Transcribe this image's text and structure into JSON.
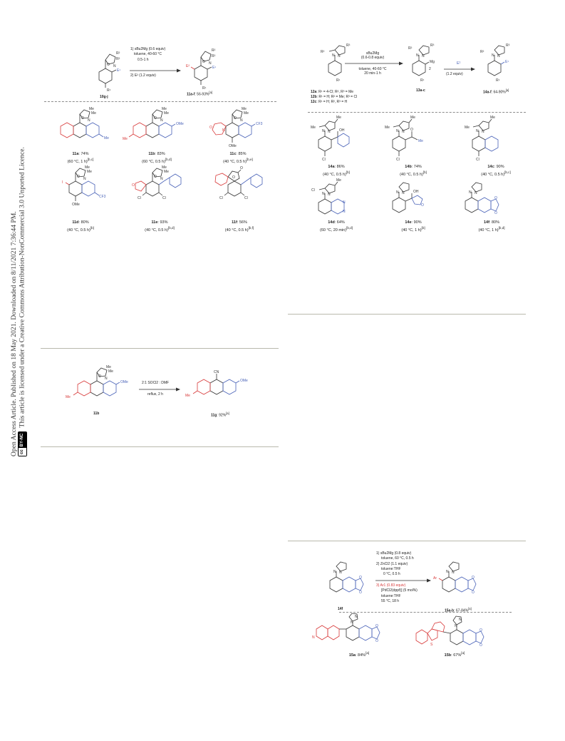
{
  "sidebar": {
    "line1": "Open Access Article. Published on 18 May 2021. Downloaded on 8/11/2021 7:36:44 PM.",
    "line2": "This article is licensed under a Creative Commons Attribution-NonCommercial 3.0 Unported Licence.",
    "badge_cc": "cc",
    "badge_terms": "BY-NC"
  },
  "scheme_a": {
    "substrate": "10g-j",
    "product": "11a-f",
    "yield": ": 56-93%",
    "yield_note": "[a]",
    "conditions": [
      "1) sBu2Mg (0.6 equiv)",
      "toluene, 40-60 °C",
      "0.5-1 h",
      "2) E² (1.2 equiv)"
    ],
    "labels": {
      "r2": "R²",
      "r2b": "R²",
      "e1": "E¹",
      "e2": "E²",
      "r1": "R¹"
    },
    "compounds": [
      {
        "id": "11a",
        "yield": ": 74%",
        "cond": "(60 °C, 1 h)",
        "note": "[b,c]"
      },
      {
        "id": "11b",
        "yield": ": 83%",
        "cond": "(60 °C, 0.5 h)",
        "note": "[b,d]"
      },
      {
        "id": "11c",
        "yield": ": 85%",
        "cond": "(40 °C, 0.5 h)",
        "note": "[b,e]"
      },
      {
        "id": "11d",
        "yield": ": 80%",
        "cond": "(40 °C, 0.5 h)",
        "note": "[b]"
      },
      {
        "id": "11e",
        "yield": ": 93%",
        "cond": "(40 °C, 0.5 h)",
        "note": "[b,d]"
      },
      {
        "id": "11f",
        "yield": ": 56%",
        "cond": "(40 °C, 0.5 h)",
        "note": "[b,f]"
      }
    ]
  },
  "scheme_b": {
    "reagent_line1": "sBu2Mg",
    "reagent_line2": "(0.6-0.8 equiv)",
    "cond_line1": "toluene, 40-60 °C",
    "cond_line2": "20 min-1 h",
    "electrophile": "E¹",
    "electrophile_equiv": "(1.2 equiv)",
    "intermediate": "13a-c",
    "product": "14a-f",
    "yield": ": 64-90%",
    "yield_note": "[a]",
    "mg_label": "Mg",
    "mg_sub": "2",
    "substrates": [
      {
        "id": "12a",
        "desc": ": R¹ = 4-Cl; R², R³ = Me"
      },
      {
        "id": "12b",
        "desc": ": R¹ = H; R² = Me; R³ = Cl"
      },
      {
        "id": "12c",
        "desc": ": R¹ = H; R², R³ = H"
      }
    ],
    "compounds": [
      {
        "id": "14a",
        "yield": ": 86%",
        "cond": "(40 °C, 0.5 h)",
        "note": "[b]"
      },
      {
        "id": "14b",
        "yield": ": 74%",
        "cond": "(40 °C, 0.5 h)",
        "note": "[b]"
      },
      {
        "id": "14c",
        "yield": ": 90%",
        "cond": "(40 °C, 0.5 h)",
        "note": "[b,c]"
      },
      {
        "id": "14d",
        "yield": ": 64%",
        "cond": "(60 °C, 20 min)",
        "note": "[b,d]"
      },
      {
        "id": "14e",
        "yield": ": 90%",
        "cond": "(40 °C, 1 h)",
        "note": "[b]"
      },
      {
        "id": "14f",
        "yield": ": 80%",
        "cond": "(40 °C, 1 h)",
        "note": "[b,d]"
      }
    ]
  },
  "scheme_c": {
    "substrate": "11b",
    "conditions": [
      "2:1 SOCl2 : DMF",
      "reflux, 2 h"
    ],
    "product": "11g",
    "yield": ": 92%",
    "yield_note": "[a]",
    "labels": {
      "me": "Me",
      "ome": "OMe",
      "cn": "CN"
    }
  },
  "scheme_d": {
    "substrate": "14f",
    "conditions": [
      "1) sBu2Mg (0.8 equiv)",
      "toluene, 60 °C, 0.5 h",
      "2) ZnCl2 (1.1 equiv)",
      "toluene:THF",
      "0 °C, 0.5 h",
      "3) Ar1 (0.83 equiv)",
      "[PdCl2(dppf)] (5 mol%)",
      "toluene:THF",
      "55 °C, 18 h"
    ],
    "product": "15a-b",
    "yield": ": 67-84%",
    "yield_note": "[a]",
    "ar_label": "Ar",
    "compounds": [
      {
        "id": "15a",
        "yield": ": 84%",
        "note": "[a]"
      },
      {
        "id": "15b",
        "yield": ": 67%",
        "note": "[a]"
      }
    ]
  }
}
